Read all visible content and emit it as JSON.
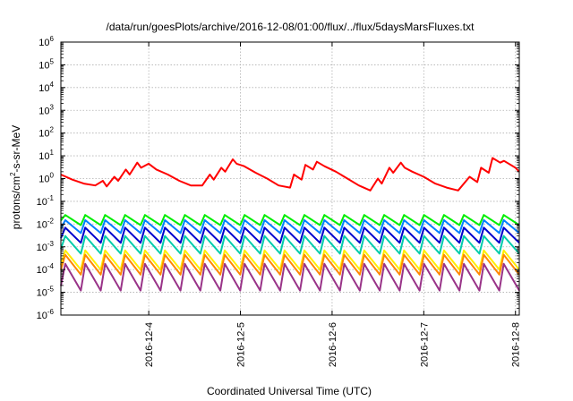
{
  "chart_data": {
    "type": "line",
    "title": "/data/run/goesPlots/archive/2016-12-08/01:00/flux/../flux/5daysMarsFluxes.txt",
    "xlabel": "Coordinated Universal Time (UTC)",
    "ylabel_main": "protons/cm",
    "ylabel_sup": "2",
    "ylabel_rest": "-s-sr-MeV",
    "y_scale": "log",
    "ylim_exp": [
      -6,
      6
    ],
    "xlim": [
      "2016-12-03 01:00",
      "2016-12-08 01:00"
    ],
    "x_ticks": [
      "2016-12-4",
      "2016-12-5",
      "2016-12-6",
      "2016-12-7",
      "2016-12-8"
    ],
    "y_tick_base": "10",
    "y_tick_exponents": [
      "-6",
      "-5",
      "-4",
      "-3",
      "-2",
      "-1",
      "0",
      "1",
      "2",
      "3",
      "4",
      "5",
      "6"
    ],
    "grid": true,
    "series": [
      {
        "color": "#ff0000",
        "x": [
          "2016-12-03 01:00",
          "2016-12-03 04:00",
          "2016-12-03 07:00",
          "2016-12-03 10:00",
          "2016-12-03 12:00",
          "2016-12-03 13:00",
          "2016-12-03 15:00",
          "2016-12-03 16:00",
          "2016-12-03 18:00",
          "2016-12-03 19:00",
          "2016-12-03 21:00",
          "2016-12-03 22:00",
          "2016-12-04 00:00",
          "2016-12-04 02:00",
          "2016-12-04 05:00",
          "2016-12-04 08:00",
          "2016-12-04 11:00",
          "2016-12-04 14:00",
          "2016-12-04 16:00",
          "2016-12-04 17:00",
          "2016-12-04 19:00",
          "2016-12-04 20:00",
          "2016-12-04 22:00",
          "2016-12-04 23:00",
          "2016-12-05 01:00",
          "2016-12-05 04:00",
          "2016-12-05 07:00",
          "2016-12-05 10:00",
          "2016-12-05 13:00",
          "2016-12-05 14:00",
          "2016-12-05 16:00",
          "2016-12-05 17:00",
          "2016-12-05 19:00",
          "2016-12-05 20:00",
          "2016-12-05 22:00",
          "2016-12-06 01:00",
          "2016-12-06 04:00",
          "2016-12-06 07:00",
          "2016-12-06 10:00",
          "2016-12-06 12:00",
          "2016-12-06 13:00",
          "2016-12-06 15:00",
          "2016-12-06 16:00",
          "2016-12-06 18:00",
          "2016-12-06 19:00",
          "2016-12-06 21:00",
          "2016-12-07 00:00",
          "2016-12-07 03:00",
          "2016-12-07 06:00",
          "2016-12-07 09:00",
          "2016-12-07 12:00",
          "2016-12-07 14:00",
          "2016-12-07 15:00",
          "2016-12-07 17:00",
          "2016-12-07 18:00",
          "2016-12-07 20:00",
          "2016-12-07 21:00",
          "2016-12-08 00:00",
          "2016-12-08 01:00"
        ],
        "y": [
          1.5,
          0.9,
          0.6,
          0.5,
          0.8,
          0.45,
          1.2,
          0.8,
          2.5,
          1.5,
          5.0,
          3.0,
          4.5,
          2.5,
          1.5,
          0.8,
          0.5,
          0.5,
          1.5,
          0.9,
          3.0,
          2.0,
          7.0,
          4.5,
          3.5,
          1.8,
          1.0,
          0.5,
          0.4,
          1.5,
          0.9,
          4.0,
          2.5,
          5.5,
          3.5,
          2.0,
          1.0,
          0.5,
          0.3,
          1.0,
          0.6,
          3.0,
          1.8,
          5.0,
          3.0,
          2.0,
          1.2,
          0.6,
          0.4,
          0.3,
          1.2,
          0.7,
          3.0,
          1.8,
          8.0,
          5.0,
          6.0,
          3.0,
          2.0
        ]
      },
      {
        "color": "#00ee00",
        "x": [
          "2016-12-03 01:00",
          "2016-12-08 01:00"
        ],
        "y_min": 0.009,
        "y_max": 0.025,
        "teeth": 23
      },
      {
        "color": "#0080ff",
        "x": [
          "2016-12-03 01:00",
          "2016-12-08 01:00"
        ],
        "y_min": 0.004,
        "y_max": 0.015,
        "teeth": 23
      },
      {
        "color": "#0000cc",
        "x": [
          "2016-12-03 01:00",
          "2016-12-08 01:00"
        ],
        "y_min": 0.0015,
        "y_max": 0.007,
        "teeth": 23
      },
      {
        "color": "#00ccaa",
        "x": [
          "2016-12-03 01:00",
          "2016-12-08 01:00"
        ],
        "y_min": 0.0005,
        "y_max": 0.003,
        "teeth": 23
      },
      {
        "color": "#ffee00",
        "x": [
          "2016-12-03 01:00",
          "2016-12-08 01:00"
        ],
        "y_min": 0.0001,
        "y_max": 0.0007,
        "teeth": 23
      },
      {
        "color": "#ff8800",
        "x": [
          "2016-12-03 01:00",
          "2016-12-08 01:00"
        ],
        "y_min": 6e-05,
        "y_max": 0.00045,
        "teeth": 23
      },
      {
        "color": "#993388",
        "x": [
          "2016-12-03 01:00",
          "2016-12-08 01:00"
        ],
        "y_min": 1.2e-05,
        "y_max": 0.00018,
        "teeth": 23
      }
    ]
  }
}
